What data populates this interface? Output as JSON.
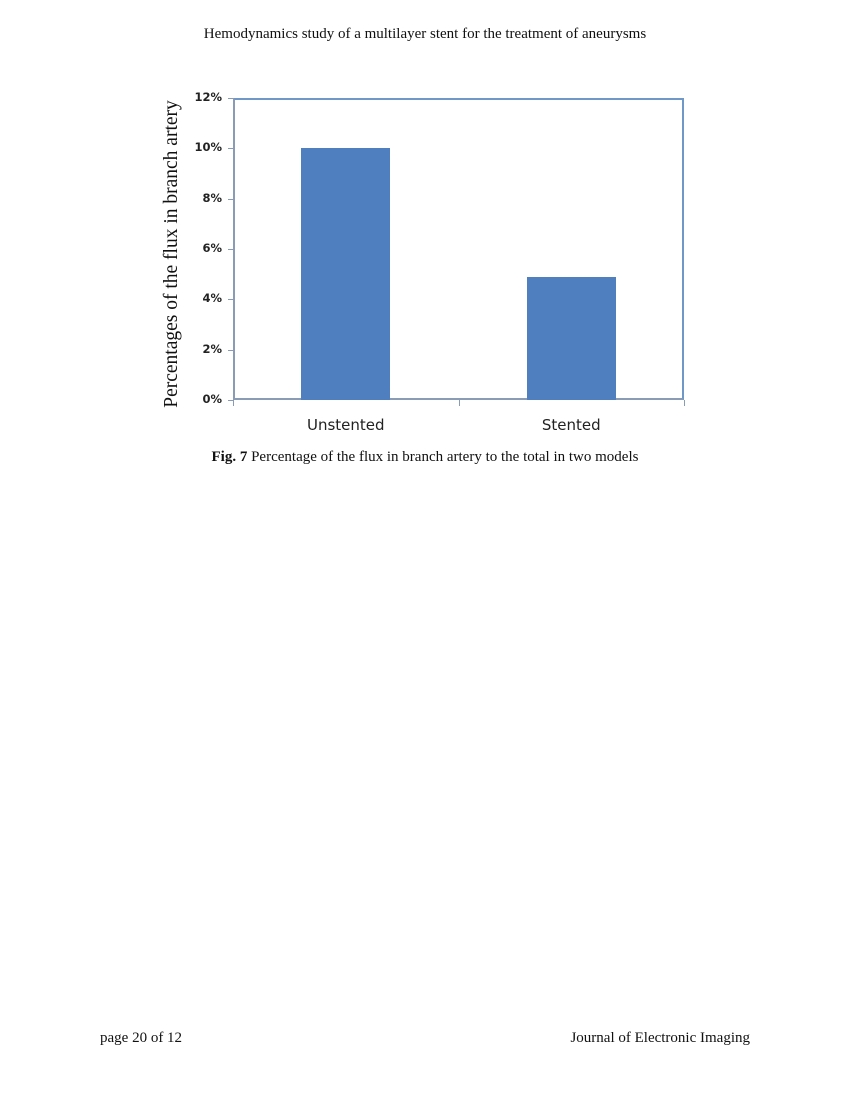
{
  "header": {
    "running_title": "Hemodynamics study of a multilayer stent for the treatment of aneurysms"
  },
  "figure": {
    "caption_label": "Fig. 7",
    "caption_text": " Percentage of the flux in branch artery to the total in two models"
  },
  "footer": {
    "page": "page 20 of 12",
    "journal": "Journal of Electronic Imaging"
  },
  "colors": {
    "bar": "#4f7fbe",
    "frame": "#6f97c8"
  },
  "chart_data": {
    "type": "bar",
    "title": "",
    "categories": [
      "Unstented",
      "Stented"
    ],
    "values": [
      10.0,
      4.9
    ],
    "value_unit": "%",
    "xlabel": "",
    "ylabel": "Percentages of the flux in branch artery",
    "ylim": [
      0,
      12
    ],
    "yticks": [
      "0%",
      "2%",
      "4%",
      "6%",
      "8%",
      "10%",
      "12%"
    ],
    "grid": false,
    "legend": null
  }
}
